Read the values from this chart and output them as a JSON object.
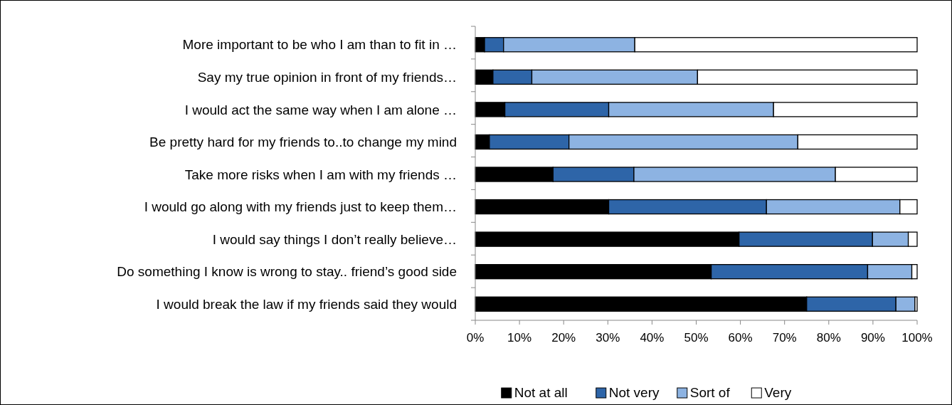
{
  "chart_data": {
    "type": "bar",
    "orientation": "horizontal",
    "stacked": true,
    "categories": [
      "More important to be who I am than to fit in …",
      "Say my true opinion in front of my friends…",
      "I would act the same way when I am alone …",
      "Be pretty hard for my friends to..to change my mind",
      "Take more risks when I am with my friends …",
      "I would go along with my friends just to keep them…",
      "I would say things I don’t really believe…",
      "Do something I know is wrong to stay.. friend’s good side",
      "I would break the law if my friends said they would"
    ],
    "series": [
      {
        "name": "Not at all",
        "color": "#000000",
        "values": [
          2.1,
          4.0,
          6.7,
          3.2,
          17.6,
          30.2,
          59.7,
          53.4,
          75.0
        ]
      },
      {
        "name": "Not very",
        "color": "#2e65a8",
        "values": [
          4.3,
          8.8,
          23.5,
          18.0,
          18.3,
          35.7,
          30.2,
          35.4,
          20.2
        ]
      },
      {
        "name": "Sort of",
        "color": "#8db3e2",
        "values": [
          29.7,
          37.5,
          37.3,
          51.8,
          45.6,
          30.2,
          8.1,
          10.0,
          4.3
        ]
      },
      {
        "name": "Very",
        "color": "#ffffff",
        "values": [
          63.9,
          49.7,
          32.5,
          27.0,
          18.5,
          3.9,
          2.0,
          1.2,
          0.5
        ]
      }
    ],
    "xlim": [
      0,
      100
    ],
    "xticks": [
      {
        "value": 0,
        "label": "0%"
      },
      {
        "value": 10,
        "label": "10%"
      },
      {
        "value": 20,
        "label": "20%"
      },
      {
        "value": 30,
        "label": "30%"
      },
      {
        "value": 40,
        "label": "40%"
      },
      {
        "value": 50,
        "label": "50%"
      },
      {
        "value": 60,
        "label": "60%"
      },
      {
        "value": 70,
        "label": "70%"
      },
      {
        "value": 80,
        "label": "80%"
      },
      {
        "value": 90,
        "label": "90%"
      },
      {
        "value": 100,
        "label": "100%"
      }
    ],
    "grid": false,
    "legend": "bottom"
  }
}
